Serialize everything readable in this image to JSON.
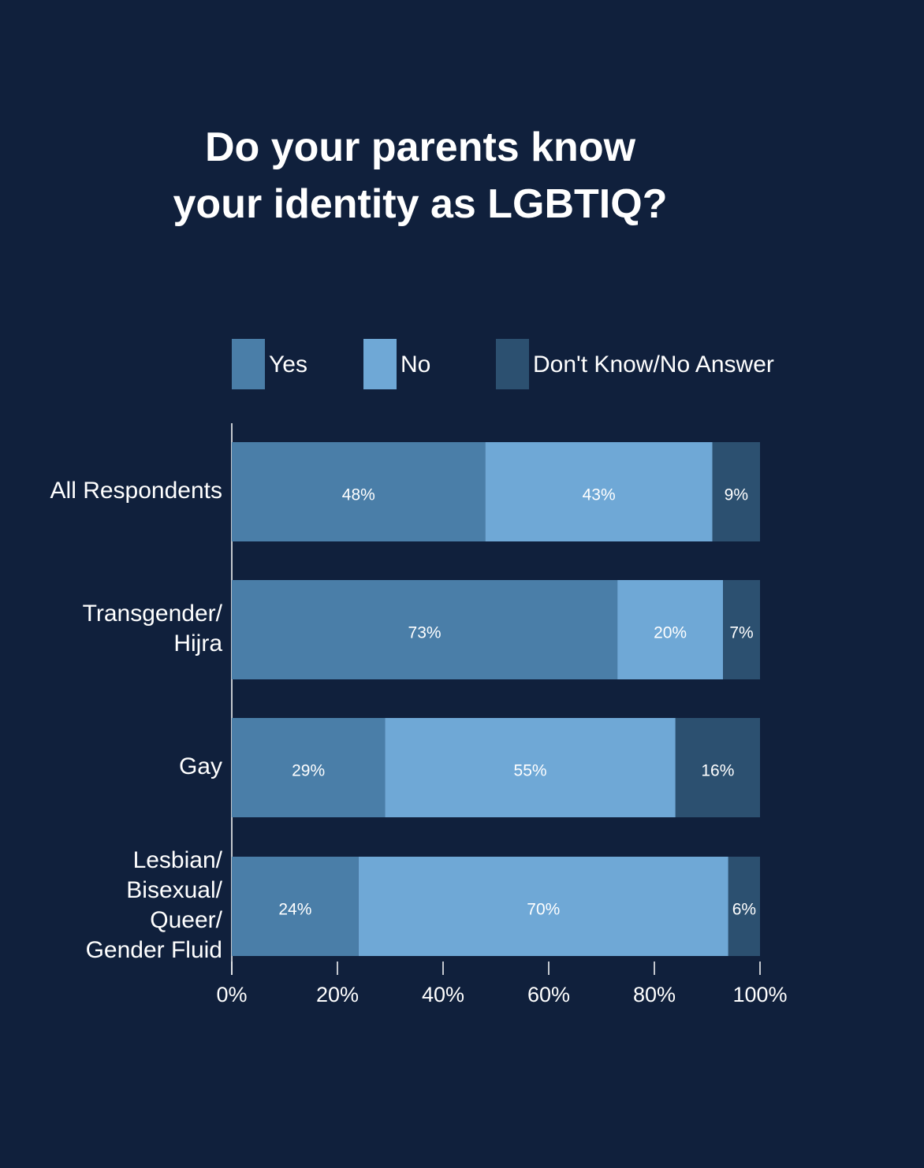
{
  "chart_data": {
    "type": "stacked-bar-horizontal",
    "title": "Do your parents know your identity as LGBTIQ?",
    "categories": [
      "All Respondents",
      "Transgender/Hijra",
      "Gay",
      "Lesbian/Bisexual/Queer/Gender Fluid"
    ],
    "series": [
      {
        "name": "Yes",
        "color": "#4a7ea8",
        "values": [
          48,
          73,
          29,
          24
        ],
        "value_labels": [
          "48%",
          "73%",
          "29%",
          "24%"
        ]
      },
      {
        "name": "No",
        "color": "#6fa8d6",
        "values": [
          43,
          20,
          55,
          70
        ],
        "value_labels": [
          "43%",
          "20%",
          "55%",
          "70%"
        ]
      },
      {
        "name": "Don't Know/No Answer",
        "color": "#2c5070",
        "values": [
          9,
          7,
          16,
          6
        ],
        "value_labels": [
          "9%",
          "7%",
          "16%",
          "6%"
        ]
      }
    ],
    "xlim": [
      0,
      100
    ],
    "xticks": [
      {
        "value": 0,
        "label": "0%"
      },
      {
        "value": 20,
        "label": "20%"
      },
      {
        "value": 40,
        "label": "40%"
      },
      {
        "value": 60,
        "label": "60%"
      },
      {
        "value": 80,
        "label": "80%"
      },
      {
        "value": 100,
        "label": "100%"
      }
    ],
    "legend": "top"
  }
}
